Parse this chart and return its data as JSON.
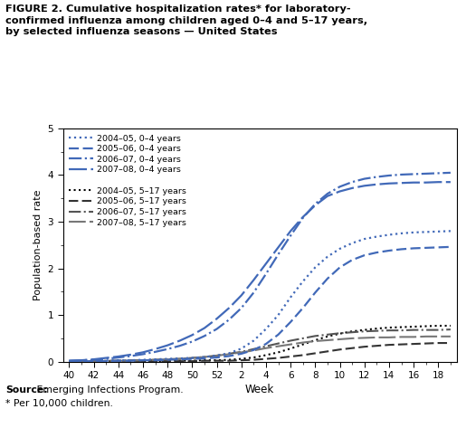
{
  "title_line1": "FIGURE 2. Cumulative hospitalization rates* for laboratory-",
  "title_line2": "confirmed influenza among children aged 0–4 and 5–17 years,",
  "title_line3": "by selected influenza seasons — United States",
  "xlabel": "Week",
  "ylabel": "Population-based rate",
  "source_bold": "Source:",
  "source_rest": " Emerging Infections Program.",
  "footnote_text": "* Per 10,000 children.",
  "ylim": [
    0,
    5
  ],
  "blue_color": "#4169B8",
  "black_color": "#000000",
  "weeks_x": [
    40,
    41,
    42,
    43,
    44,
    45,
    46,
    47,
    48,
    49,
    50,
    51,
    52,
    1,
    2,
    3,
    4,
    5,
    6,
    7,
    8,
    9,
    10,
    11,
    12,
    13,
    14,
    15,
    16,
    17,
    18,
    19
  ],
  "series": {
    "2004_05_04": [
      0.01,
      0.01,
      0.02,
      0.02,
      0.03,
      0.03,
      0.04,
      0.05,
      0.06,
      0.07,
      0.08,
      0.1,
      0.13,
      0.18,
      0.28,
      0.45,
      0.7,
      1.0,
      1.38,
      1.72,
      2.02,
      2.25,
      2.42,
      2.54,
      2.63,
      2.68,
      2.72,
      2.75,
      2.77,
      2.78,
      2.79,
      2.8
    ],
    "2005_06_04": [
      0.01,
      0.01,
      0.01,
      0.01,
      0.02,
      0.02,
      0.03,
      0.03,
      0.04,
      0.05,
      0.06,
      0.07,
      0.09,
      0.12,
      0.17,
      0.25,
      0.38,
      0.58,
      0.85,
      1.15,
      1.48,
      1.78,
      2.02,
      2.18,
      2.28,
      2.34,
      2.38,
      2.41,
      2.43,
      2.44,
      2.45,
      2.46
    ],
    "2006_07_04": [
      0.02,
      0.03,
      0.04,
      0.06,
      0.09,
      0.12,
      0.16,
      0.21,
      0.27,
      0.34,
      0.43,
      0.55,
      0.7,
      0.9,
      1.15,
      1.48,
      1.88,
      2.3,
      2.7,
      3.08,
      3.38,
      3.6,
      3.75,
      3.85,
      3.92,
      3.96,
      3.99,
      4.01,
      4.02,
      4.03,
      4.04,
      4.05
    ],
    "2007_08_04": [
      0.02,
      0.03,
      0.05,
      0.08,
      0.11,
      0.15,
      0.2,
      0.27,
      0.35,
      0.45,
      0.57,
      0.72,
      0.92,
      1.15,
      1.42,
      1.75,
      2.1,
      2.45,
      2.8,
      3.1,
      3.35,
      3.55,
      3.65,
      3.72,
      3.77,
      3.8,
      3.82,
      3.83,
      3.84,
      3.84,
      3.85,
      3.85
    ],
    "2004_05_517": [
      0.0,
      0.0,
      0.01,
      0.01,
      0.01,
      0.01,
      0.01,
      0.01,
      0.02,
      0.02,
      0.02,
      0.03,
      0.03,
      0.04,
      0.06,
      0.09,
      0.14,
      0.2,
      0.28,
      0.37,
      0.46,
      0.54,
      0.6,
      0.65,
      0.68,
      0.71,
      0.73,
      0.74,
      0.75,
      0.76,
      0.77,
      0.77
    ],
    "2005_06_517": [
      0.0,
      0.0,
      0.0,
      0.0,
      0.01,
      0.01,
      0.01,
      0.01,
      0.01,
      0.01,
      0.01,
      0.02,
      0.02,
      0.02,
      0.03,
      0.04,
      0.06,
      0.08,
      0.11,
      0.14,
      0.18,
      0.22,
      0.26,
      0.29,
      0.32,
      0.34,
      0.36,
      0.37,
      0.38,
      0.39,
      0.4,
      0.4
    ],
    "2006_07_517": [
      0.01,
      0.01,
      0.01,
      0.02,
      0.02,
      0.03,
      0.03,
      0.04,
      0.05,
      0.06,
      0.08,
      0.1,
      0.13,
      0.17,
      0.21,
      0.27,
      0.33,
      0.39,
      0.45,
      0.5,
      0.55,
      0.58,
      0.61,
      0.63,
      0.65,
      0.66,
      0.67,
      0.67,
      0.68,
      0.68,
      0.68,
      0.69
    ],
    "2007_08_517": [
      0.0,
      0.01,
      0.01,
      0.01,
      0.02,
      0.02,
      0.03,
      0.04,
      0.05,
      0.06,
      0.08,
      0.1,
      0.13,
      0.16,
      0.2,
      0.24,
      0.29,
      0.33,
      0.37,
      0.41,
      0.44,
      0.46,
      0.48,
      0.5,
      0.51,
      0.52,
      0.52,
      0.53,
      0.53,
      0.54,
      0.54,
      0.54
    ]
  }
}
